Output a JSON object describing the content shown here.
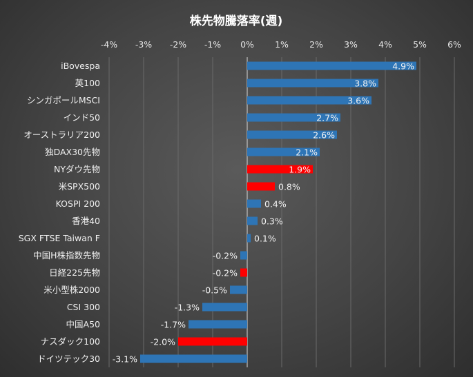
{
  "chart_data": {
    "type": "bar",
    "orientation": "horizontal",
    "title": "株先物騰落率(週)",
    "xlabel": "",
    "ylabel": "",
    "xlim": [
      -4,
      6
    ],
    "x_ticks": [
      "-4%",
      "-3%",
      "-2%",
      "-1%",
      "0%",
      "1%",
      "2%",
      "3%",
      "4%",
      "5%",
      "6%"
    ],
    "x_tick_values": [
      -4,
      -3,
      -2,
      -1,
      0,
      1,
      2,
      3,
      4,
      5,
      6
    ],
    "grid": true,
    "colors": {
      "default": "#2e75b6",
      "highlight": "#ff0000",
      "background": "#444444"
    },
    "categories": [
      "iBovespa",
      "英100",
      "シンガポールMSCI",
      "インド50",
      "オーストラリア200",
      "独DAX30先物",
      "NYダウ先物",
      "米SPX500",
      "KOSPI 200",
      "香港40",
      "SGX FTSE Taiwan F",
      "中国H株指数先物",
      "日経225先物",
      "米小型株2000",
      "CSI 300",
      "中国A50",
      "ナスダック100",
      "ドイツテック30"
    ],
    "values": [
      4.9,
      3.8,
      3.6,
      2.7,
      2.6,
      2.1,
      1.9,
      0.8,
      0.4,
      0.3,
      0.1,
      -0.2,
      -0.2,
      -0.5,
      -1.3,
      -1.7,
      -2.0,
      -3.1
    ],
    "data_labels": [
      "4.9%",
      "3.8%",
      "3.6%",
      "2.7%",
      "2.6%",
      "2.1%",
      "1.9%",
      "0.8%",
      "0.4%",
      "0.3%",
      "0.1%",
      "-0.2%",
      "-0.2%",
      "-0.5%",
      "-1.3%",
      "-1.7%",
      "-2.0%",
      "-3.1%"
    ],
    "highlight": [
      false,
      false,
      false,
      false,
      false,
      false,
      true,
      true,
      false,
      false,
      false,
      false,
      true,
      false,
      false,
      false,
      true,
      false
    ]
  }
}
